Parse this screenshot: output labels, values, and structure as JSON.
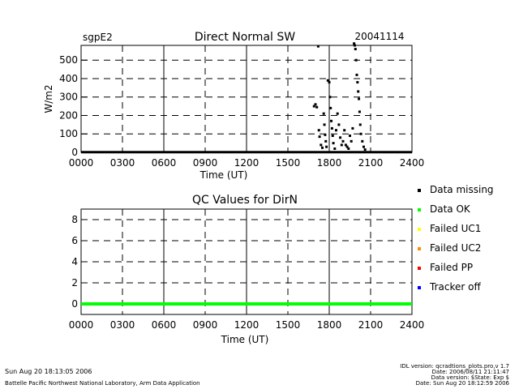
{
  "header": {
    "site": "sgpE2",
    "title": "Direct Normal SW",
    "date": "20041114"
  },
  "chart_data": [
    {
      "type": "scatter",
      "title": "Direct Normal SW",
      "xlabel": "Time (UT)",
      "ylabel": "W/m2",
      "x_ticks": [
        "0000",
        "0300",
        "0600",
        "0900",
        "1200",
        "1500",
        "1800",
        "2100",
        "2400"
      ],
      "y_ticks": [
        "0",
        "100",
        "200",
        "300",
        "400",
        "500"
      ],
      "xlim": [
        0,
        24
      ],
      "ylim": [
        0,
        580
      ],
      "grid": "dashed",
      "series": [
        {
          "name": "Data missing",
          "baseline": [
            [
              0,
              24,
              1
            ]
          ],
          "points": [
            [
              16.9,
              250
            ],
            [
              17.0,
              260
            ],
            [
              17.1,
              245
            ],
            [
              17.2,
              575
            ],
            [
              17.25,
              120
            ],
            [
              17.3,
              85
            ],
            [
              17.4,
              40
            ],
            [
              17.5,
              25
            ],
            [
              17.6,
              210
            ],
            [
              17.65,
              150
            ],
            [
              17.7,
              95
            ],
            [
              17.75,
              60
            ],
            [
              17.8,
              30
            ],
            [
              17.9,
              390
            ],
            [
              18.0,
              380
            ],
            [
              18.05,
              300
            ],
            [
              18.1,
              240
            ],
            [
              18.15,
              170
            ],
            [
              18.2,
              130
            ],
            [
              18.25,
              90
            ],
            [
              18.3,
              50
            ],
            [
              18.4,
              20
            ],
            [
              18.5,
              120
            ],
            [
              18.6,
              210
            ],
            [
              18.7,
              150
            ],
            [
              18.8,
              80
            ],
            [
              18.9,
              40
            ],
            [
              19.0,
              60
            ],
            [
              19.1,
              120
            ],
            [
              19.2,
              40
            ],
            [
              19.3,
              30
            ],
            [
              19.4,
              20
            ],
            [
              19.5,
              90
            ],
            [
              19.6,
              60
            ],
            [
              19.7,
              130
            ],
            [
              19.8,
              590
            ],
            [
              19.85,
              580
            ],
            [
              19.9,
              560
            ],
            [
              19.95,
              500
            ],
            [
              20.0,
              420
            ],
            [
              20.05,
              380
            ],
            [
              20.1,
              330
            ],
            [
              20.15,
              290
            ],
            [
              20.2,
              220
            ],
            [
              20.25,
              150
            ],
            [
              20.3,
              100
            ],
            [
              20.4,
              60
            ],
            [
              20.5,
              30
            ],
            [
              20.6,
              15
            ]
          ]
        }
      ]
    },
    {
      "type": "line",
      "title": "QC Values for DirN",
      "xlabel": "Time (UT)",
      "ylabel": "",
      "x_ticks": [
        "0000",
        "0300",
        "0600",
        "0900",
        "1200",
        "1500",
        "1800",
        "2100",
        "2400"
      ],
      "y_ticks": [
        "0",
        "2",
        "4",
        "6",
        "8"
      ],
      "xlim": [
        0,
        24
      ],
      "ylim": [
        -1,
        9
      ],
      "grid": "dashed",
      "series": [
        {
          "name": "Data OK",
          "x": [
            0,
            24
          ],
          "values": [
            0,
            0
          ],
          "color": "#00ff00"
        }
      ]
    }
  ],
  "legend": {
    "items": [
      {
        "label": "Data missing",
        "color": "#000000"
      },
      {
        "label": "Data OK",
        "color": "#00ff00"
      },
      {
        "label": "Failed UC1",
        "color": "#ffff00"
      },
      {
        "label": "Failed UC2",
        "color": "#ff8c00"
      },
      {
        "label": "Failed PP",
        "color": "#ff0000"
      },
      {
        "label": "Tracker off",
        "color": "#0000ff"
      }
    ]
  },
  "footer": {
    "left_timestamp": "Sun Aug 20 18:13:05 2006",
    "left_org": "Battelle Pacific Northwest National Laboratory, Arm Data Application",
    "right_lines": [
      "IDL version: qcradtions_plots.pro,v 1.7",
      "Date: 2006/08/11 21:11:47",
      "Data version: $State: Exp $",
      "Date: Sun Aug 20 18:12:59 2006"
    ]
  }
}
